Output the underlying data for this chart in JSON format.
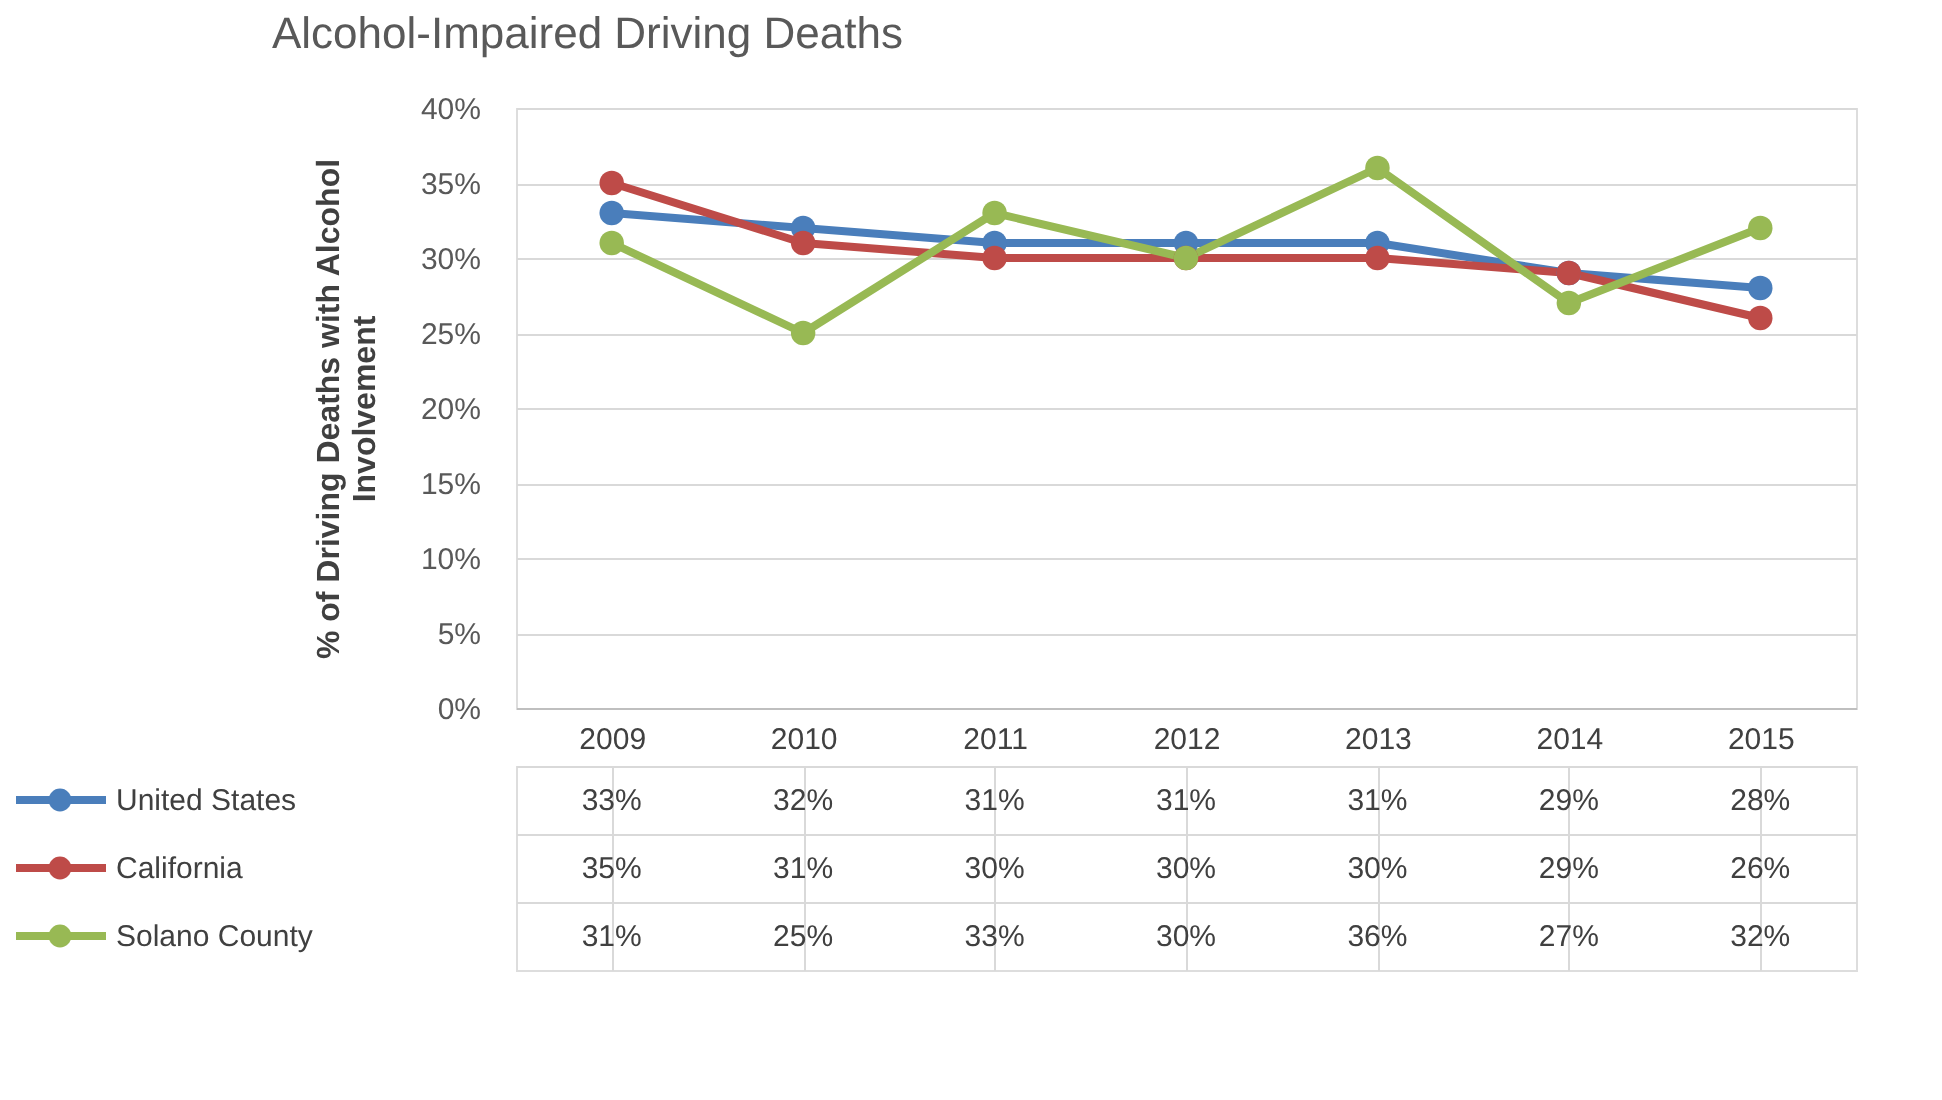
{
  "chart_data": {
    "type": "line",
    "title": "Alcohol-Impaired Driving Deaths",
    "ylabel": "% of Driving Deaths with Alcohol Involvement",
    "categories": [
      "2009",
      "2010",
      "2011",
      "2012",
      "2013",
      "2014",
      "2015"
    ],
    "series": [
      {
        "name": "United States",
        "color": "#4a7ebb",
        "values": [
          33,
          32,
          31,
          31,
          31,
          29,
          28
        ],
        "value_labels": [
          "33%",
          "32%",
          "31%",
          "31%",
          "31%",
          "29%",
          "28%"
        ]
      },
      {
        "name": "California",
        "color": "#be4b48",
        "values": [
          35,
          31,
          30,
          30,
          30,
          29,
          26
        ],
        "value_labels": [
          "35%",
          "31%",
          "30%",
          "30%",
          "30%",
          "29%",
          "26%"
        ]
      },
      {
        "name": "Solano County",
        "color": "#98b954",
        "values": [
          31,
          25,
          33,
          30,
          36,
          27,
          32
        ],
        "value_labels": [
          "31%",
          "25%",
          "33%",
          "30%",
          "36%",
          "27%",
          "32%"
        ]
      }
    ],
    "ylim": [
      0,
      40
    ],
    "yticks": [
      {
        "value": 0,
        "label": "0%"
      },
      {
        "value": 5,
        "label": "5%"
      },
      {
        "value": 10,
        "label": "10%"
      },
      {
        "value": 15,
        "label": "15%"
      },
      {
        "value": 20,
        "label": "20%"
      },
      {
        "value": 25,
        "label": "25%"
      },
      {
        "value": 30,
        "label": "30%"
      },
      {
        "value": 35,
        "label": "35%"
      },
      {
        "value": 40,
        "label": "40%"
      }
    ],
    "grid": "y",
    "marker": "circle",
    "line_style": "solid",
    "legend": "bottom left"
  }
}
